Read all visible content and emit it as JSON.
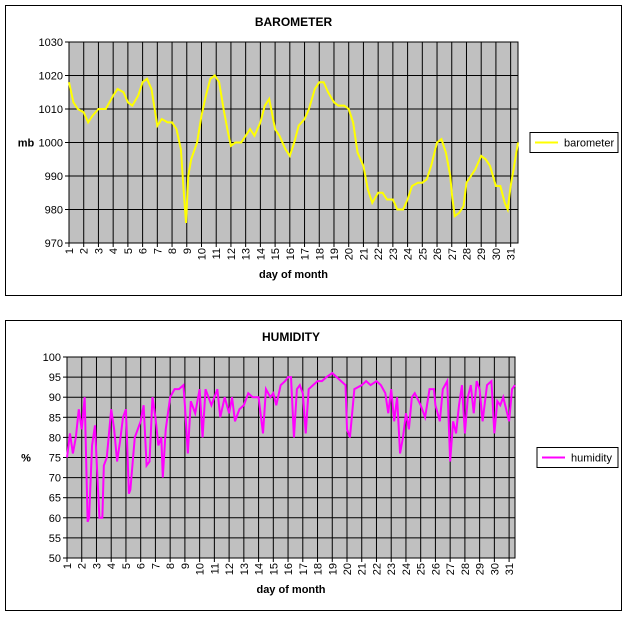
{
  "chart_data": [
    {
      "type": "line",
      "title": "BAROMETER",
      "ylabel": "mb",
      "xlabel": "day of month",
      "xlim": [
        1,
        31.5
      ],
      "xticks": [
        1,
        2,
        3,
        4,
        5,
        6,
        7,
        8,
        9,
        10,
        11,
        12,
        13,
        14,
        15,
        16,
        17,
        18,
        19,
        20,
        21,
        22,
        23,
        24,
        25,
        26,
        27,
        28,
        29,
        30,
        31
      ],
      "ylim": [
        970,
        1030
      ],
      "yticks": [
        970,
        980,
        990,
        1000,
        1010,
        1020,
        1030
      ],
      "grid": true,
      "legend": "right",
      "x": [
        1,
        1.3,
        1.6,
        2,
        2.3,
        2.6,
        3,
        3.5,
        4,
        4.3,
        4.7,
        5,
        5.3,
        5.7,
        6,
        6.3,
        6.6,
        7,
        7.3,
        7.7,
        8,
        8.3,
        8.6,
        8.8,
        8.95,
        9.1,
        9.3,
        9.7,
        10,
        10.3,
        10.6,
        10.9,
        11.2,
        11.5,
        11.8,
        12,
        12.3,
        12.7,
        13,
        13.3,
        13.6,
        14,
        14.3,
        14.6,
        15,
        15.3,
        15.7,
        16,
        16.3,
        16.6,
        17,
        17.3,
        17.7,
        18,
        18.3,
        18.6,
        19,
        19.3,
        19.7,
        20,
        20.3,
        20.6,
        21,
        21.3,
        21.6,
        22,
        22.3,
        22.6,
        23,
        23.3,
        23.7,
        24,
        24.3,
        24.7,
        25,
        25.3,
        25.6,
        26,
        26.3,
        26.6,
        26.9,
        27,
        27.2,
        27.5,
        27.8,
        28,
        28.3,
        28.6,
        29,
        29.3,
        29.6,
        30,
        30.3,
        30.6,
        30.8,
        31,
        31.2,
        31.5
      ],
      "series": [
        {
          "name": "barometer",
          "color": "#ffff00",
          "values": [
            1018,
            1012,
            1010,
            1009,
            1006,
            1008,
            1010,
            1010,
            1014,
            1016,
            1015,
            1012,
            1011,
            1014,
            1018,
            1019,
            1016,
            1005,
            1007,
            1006,
            1006,
            1004,
            998,
            985,
            976,
            990,
            995,
            1000,
            1008,
            1014,
            1019,
            1020,
            1018,
            1010,
            1003,
            999,
            1000,
            1000,
            1002,
            1004,
            1002,
            1006,
            1011,
            1013,
            1004,
            1002,
            998,
            996,
            1000,
            1005,
            1007,
            1010,
            1016,
            1018,
            1018,
            1015,
            1012,
            1011,
            1011,
            1010,
            1006,
            997,
            993,
            986,
            982,
            985,
            985,
            983,
            983,
            980,
            980,
            983,
            987,
            988,
            988,
            989,
            993,
            1000,
            1001,
            997,
            990,
            985,
            978,
            979,
            981,
            988,
            990,
            992,
            996,
            995,
            993,
            987,
            987,
            982,
            980,
            987,
            992,
            1000
          ]
        }
      ]
    },
    {
      "type": "line",
      "title": "HUMIDITY",
      "ylabel": "%",
      "xlabel": "day of month",
      "xlim": [
        1,
        31.4
      ],
      "xticks": [
        1,
        2,
        3,
        4,
        5,
        6,
        7,
        8,
        9,
        10,
        11,
        12,
        13,
        14,
        15,
        16,
        17,
        18,
        19,
        20,
        21,
        22,
        23,
        24,
        25,
        26,
        27,
        28,
        29,
        30,
        31
      ],
      "ylim": [
        50,
        100
      ],
      "yticks": [
        50,
        55,
        60,
        65,
        70,
        75,
        80,
        85,
        90,
        95,
        100
      ],
      "grid": true,
      "legend": "right",
      "x": [
        1,
        1.2,
        1.4,
        1.6,
        1.8,
        2,
        2.2,
        2.4,
        2.5,
        2.7,
        2.9,
        3,
        3.2,
        3.4,
        3.5,
        3.7,
        4,
        4.2,
        4.4,
        4.6,
        4.8,
        5,
        5.2,
        5.3,
        5.6,
        5.8,
        6,
        6.2,
        6.4,
        6.6,
        6.8,
        7,
        7.2,
        7.4,
        7.5,
        7.7,
        8,
        8.3,
        8.6,
        8.9,
        9,
        9.2,
        9.4,
        9.7,
        10,
        10.2,
        10.4,
        10.8,
        11,
        11.2,
        11.4,
        11.7,
        12,
        12.2,
        12.4,
        12.7,
        13,
        13.3,
        13.6,
        14,
        14.3,
        14.5,
        14.8,
        15,
        15.2,
        15.5,
        15.8,
        16,
        16.2,
        16.4,
        16.6,
        16.8,
        17,
        17.2,
        17.4,
        17.7,
        18,
        18.3,
        18.6,
        19,
        19.3,
        19.6,
        19.9,
        20,
        20.2,
        20.5,
        21,
        21.3,
        21.6,
        22,
        22.3,
        22.6,
        22.8,
        23,
        23.2,
        23.4,
        23.6,
        23.8,
        24,
        24.2,
        24.4,
        24.6,
        25,
        25.3,
        25.6,
        25.9,
        26,
        26.3,
        26.5,
        26.8,
        27,
        27.2,
        27.4,
        27.6,
        27.8,
        28,
        28.2,
        28.4,
        28.6,
        28.8,
        29,
        29.2,
        29.5,
        29.8,
        30,
        30.2,
        30.4,
        30.6,
        30.8,
        31,
        31.2,
        31.4
      ],
      "series": [
        {
          "name": "humidity",
          "color": "#ff00ff",
          "values": [
            75,
            81,
            76,
            80,
            87,
            82,
            90,
            59,
            60,
            78,
            83,
            75,
            60,
            60,
            73,
            75,
            87,
            82,
            74,
            79,
            85,
            87,
            66,
            67,
            80,
            82,
            84,
            88,
            73,
            74,
            90,
            85,
            78,
            80,
            70,
            82,
            90,
            92,
            92,
            93,
            88,
            76,
            89,
            86,
            92,
            80,
            92,
            88,
            90,
            92,
            85,
            90,
            86,
            90,
            84,
            87,
            88,
            91,
            90,
            90,
            81,
            92,
            90,
            91,
            88,
            93,
            94,
            95,
            95,
            80,
            92,
            93,
            91,
            81,
            92,
            93,
            94,
            94,
            95,
            96,
            95,
            94,
            93,
            82,
            80,
            92,
            93,
            94,
            93,
            94,
            93,
            91,
            86,
            92,
            84,
            90,
            76,
            80,
            86,
            82,
            90,
            91,
            88,
            85,
            92,
            92,
            88,
            84,
            92,
            94,
            74,
            84,
            81,
            88,
            93,
            81,
            90,
            93,
            86,
            94,
            92,
            84,
            93,
            94,
            81,
            89,
            88,
            90,
            87,
            84,
            92,
            93
          ]
        }
      ]
    }
  ]
}
